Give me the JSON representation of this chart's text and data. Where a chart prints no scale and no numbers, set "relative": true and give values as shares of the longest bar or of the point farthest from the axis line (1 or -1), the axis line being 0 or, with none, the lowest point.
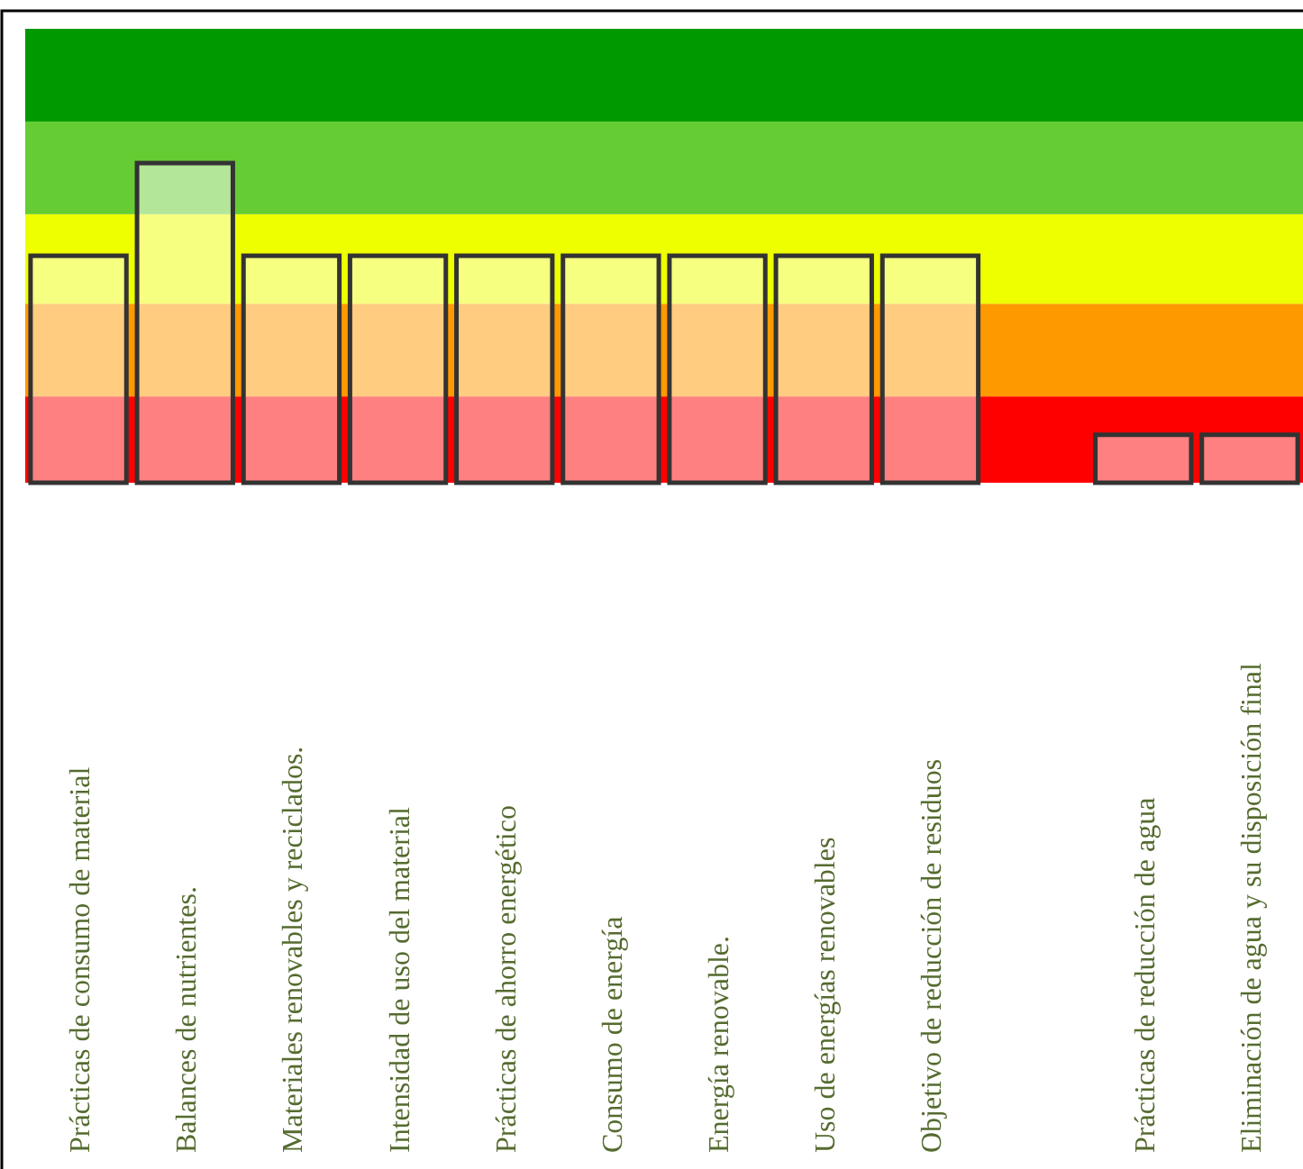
{
  "chart_data": {
    "type": "bar",
    "relative": true,
    "categories": [
      "Prácticas de consumo de material",
      "Balances de nutrientes.",
      "Materiales renovables y reciclados.",
      "Intensidad de uso del material",
      "Prácticas de ahorro energético",
      "Consumo de energía",
      "Energía renovable.",
      "Uso de energías renovables",
      "Objetivo de reducción de residuos",
      null,
      "Prácticas de reducción de agua",
      "Eliminación de agua y su disposición final"
    ],
    "values": [
      0.71,
      1,
      0.71,
      0.71,
      0.71,
      0.71,
      0.71,
      0.71,
      0.71,
      null,
      0.15,
      0.15
    ],
    "color": "#ffffff",
    "bands": [
      {
        "axis": "y",
        "from": 0,
        "to": 0.27,
        "color": "#ff0000"
      },
      {
        "axis": "y",
        "from": 0.27,
        "to": 0.56,
        "color": "#ff9900"
      },
      {
        "axis": "y",
        "from": 0.56,
        "to": 0.84,
        "color": "#eeff00"
      },
      {
        "axis": "y",
        "from": 0.84,
        "to": 1.13,
        "color": "#66cc33"
      },
      {
        "axis": "y",
        "from": 1.13,
        "to": 1.42,
        "color": "#009900"
      }
    ],
    "grid": false
  }
}
